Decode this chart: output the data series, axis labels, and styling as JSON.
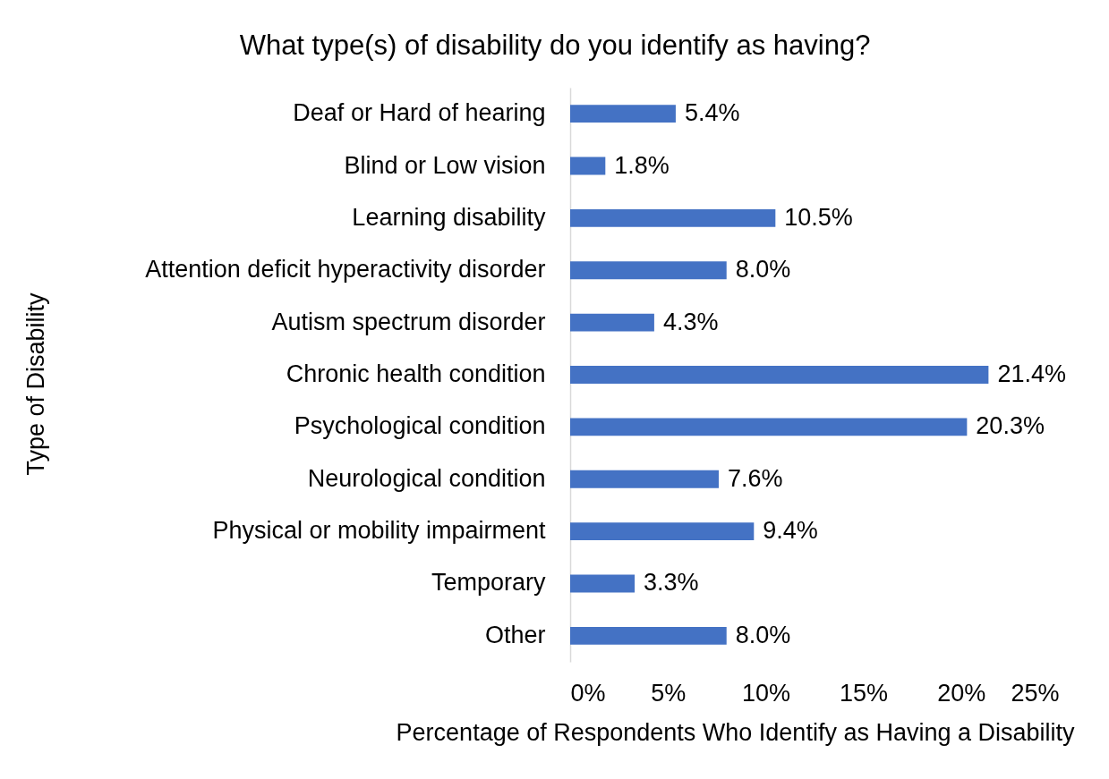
{
  "chart_data": {
    "type": "bar",
    "orientation": "horizontal",
    "title": "What type(s) of disability do you identify as having?",
    "xlabel": "Percentage of Respondents Who Identify as Having a Disability",
    "ylabel": "Type of Disability",
    "categories": [
      "Deaf or Hard of hearing",
      "Blind or Low vision",
      "Learning disability",
      "Attention deficit hyperactivity disorder",
      "Autism spectrum disorder",
      "Chronic health condition",
      "Psychological condition",
      "Neurological condition",
      "Physical or mobility impairment",
      "Temporary",
      "Other"
    ],
    "values": [
      5.4,
      1.8,
      10.5,
      8.0,
      4.3,
      21.4,
      20.3,
      7.6,
      9.4,
      3.3,
      8.0
    ],
    "value_labels": [
      "5.4%",
      "1.8%",
      "10.5%",
      "8.0%",
      "4.3%",
      "21.4%",
      "20.3%",
      "7.6%",
      "9.4%",
      "3.3%",
      "8.0%"
    ],
    "color": "#4472c4",
    "xlim": [
      0,
      25
    ],
    "xticks": [
      {
        "value": 0,
        "label": "0%"
      },
      {
        "value": 5,
        "label": "5%"
      },
      {
        "value": 10,
        "label": "10%"
      },
      {
        "value": 15,
        "label": "15%"
      },
      {
        "value": 20,
        "label": "20%"
      },
      {
        "value": 25,
        "label": "25%"
      }
    ],
    "grid": false
  }
}
